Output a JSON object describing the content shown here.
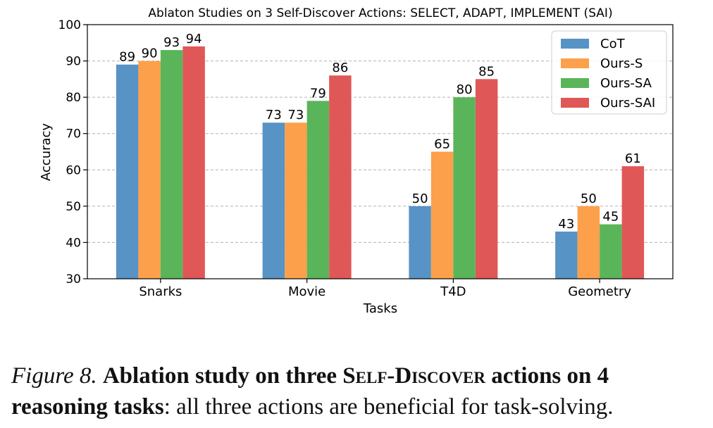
{
  "chart_data": {
    "type": "bar",
    "title": "Ablaton Studies on 3 Self-Discover Actions: SELECT, ADAPT, IMPLEMENT (SAI)",
    "xlabel": "Tasks",
    "ylabel": "Accuracy",
    "ylim": [
      30,
      100
    ],
    "yticks": [
      30,
      40,
      50,
      60,
      70,
      80,
      90,
      100
    ],
    "grid": "y-dashed",
    "legend_position": "top-right",
    "categories": [
      "Snarks",
      "Movie",
      "T4D",
      "Geometry"
    ],
    "series": [
      {
        "name": "CoT",
        "color": "#5793c5",
        "values": [
          89,
          73,
          50,
          43
        ]
      },
      {
        "name": "Ours-S",
        "color": "#fda04b",
        "values": [
          90,
          73,
          65,
          50
        ]
      },
      {
        "name": "Ours-SA",
        "color": "#5ab55a",
        "values": [
          93,
          79,
          80,
          45
        ]
      },
      {
        "name": "Ours-SAI",
        "color": "#e05757",
        "values": [
          94,
          86,
          85,
          61
        ]
      }
    ]
  },
  "caption": {
    "figure_label": "Figure 8.",
    "bold_part1": "Ablation study on three",
    "bold_smallcaps": "Self-Discover",
    "bold_part2": "actions on 4 reasoning tasks",
    "rest": ": all three actions are beneficial for task-solving."
  }
}
